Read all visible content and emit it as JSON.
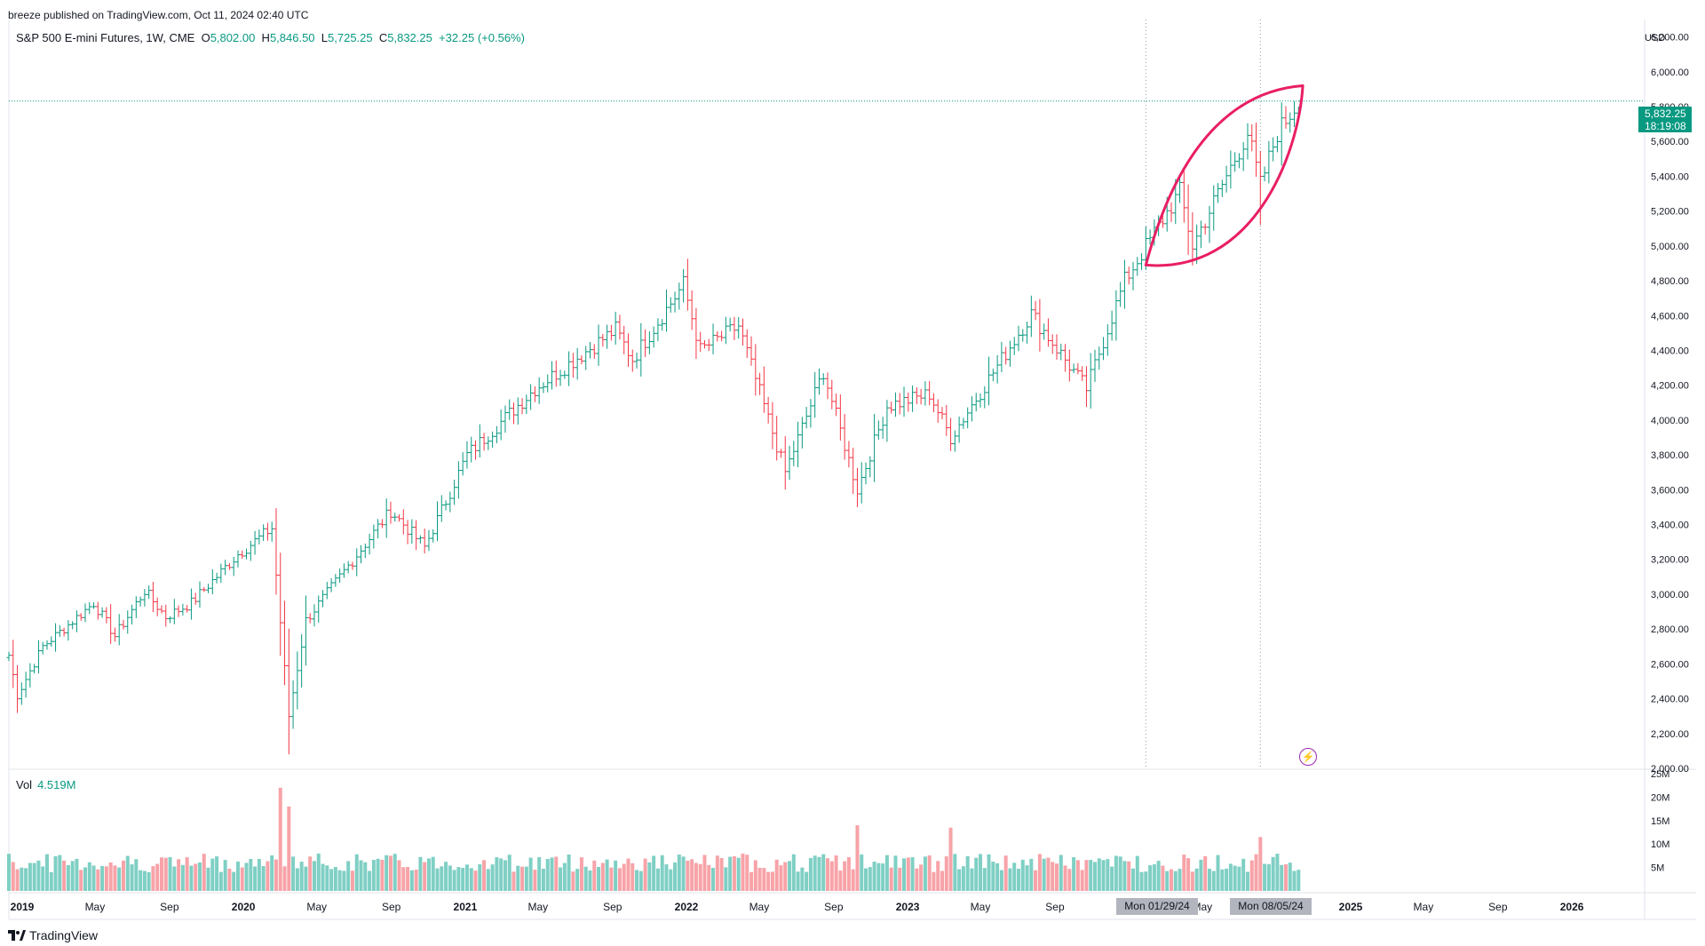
{
  "header": {
    "published": "breeze published on TradingView.com, Oct 11, 2024 02:40 UTC"
  },
  "legend": {
    "symbol": "S&P 500 E-mini Futures, 1W, CME",
    "o_key": "O",
    "open": "5,802.00",
    "h_key": "H",
    "high": "5,846.50",
    "l_key": "L",
    "low": "5,725.25",
    "c_key": "C",
    "close": "5,832.25",
    "change": "+32.25 (+0.56%)"
  },
  "volume_legend": {
    "label": "Vol",
    "value": "4.519M"
  },
  "axis": {
    "currency": "USD"
  },
  "last_price": {
    "price": "5,832.25",
    "countdown": "18:19:08"
  },
  "crosshair": {
    "left_date": "Mon 01/29/24",
    "right_date": "Mon 08/05/24"
  },
  "footer": {
    "brand": "TradingView"
  },
  "icons": {
    "flash": "lightning-bolt-icon"
  },
  "colors": {
    "up": "#089981",
    "down": "#f23645",
    "up_volume": "#7fcfc4",
    "down_volume": "#f7a3a8",
    "drawing": "#e91e63",
    "price_line": "#089981",
    "crosshair_label_bg": "#b2b5be"
  },
  "chart_data": {
    "type": "ohlc-bar",
    "title": "S&P 500 E-mini Futures, 1W, CME",
    "ylim": [
      2000,
      6300
    ],
    "y_ticks": [
      2000,
      2200,
      2400,
      2600,
      2800,
      3000,
      3200,
      3400,
      3600,
      3800,
      4000,
      4200,
      4400,
      4600,
      4800,
      5000,
      5200,
      5400,
      5600,
      5800,
      6000,
      6200
    ],
    "y_tick_labels": [
      "2,000.00",
      "2,200.00",
      "2,400.00",
      "2,600.00",
      "2,800.00",
      "3,000.00",
      "3,200.00",
      "3,400.00",
      "3,600.00",
      "3,800.00",
      "4,000.00",
      "4,200.00",
      "4,400.00",
      "4,600.00",
      "4,800.00",
      "5,000.00",
      "5,200.00",
      "5,400.00",
      "5,600.00",
      "5,800.00",
      "6,000.00",
      "6,200.00"
    ],
    "x_ticks": [
      "2019",
      "May",
      "Sep",
      "2020",
      "May",
      "Sep",
      "2021",
      "May",
      "Sep",
      "2022",
      "May",
      "Sep",
      "2023",
      "May",
      "Sep",
      "Jan",
      "May",
      "Aug",
      "2025",
      "May",
      "Sep",
      "2026"
    ],
    "x_tick_dates": [
      "2019-01-01",
      "2019-05-01",
      "2019-09-01",
      "2020-01-01",
      "2020-05-01",
      "2020-09-01",
      "2021-01-01",
      "2021-05-01",
      "2021-09-01",
      "2022-01-01",
      "2022-05-01",
      "2022-09-01",
      "2023-01-01",
      "2023-05-01",
      "2023-09-01",
      "2024-01-29",
      "2024-05-01",
      "2024-08-05",
      "2025-01-01",
      "2025-05-01",
      "2025-09-01",
      "2026-01-01"
    ],
    "x_tick_hidden": [
      false,
      false,
      false,
      false,
      false,
      false,
      false,
      false,
      false,
      false,
      false,
      false,
      false,
      false,
      false,
      true,
      false,
      true,
      false,
      false,
      false,
      false
    ],
    "x_domain": [
      "2018-12-10",
      "2026-05-01"
    ],
    "weekly_close_anchors": [
      {
        "date": "2018-12-10",
        "close": 2650
      },
      {
        "date": "2018-12-24",
        "close": 2420
      },
      {
        "date": "2019-02-04",
        "close": 2700
      },
      {
        "date": "2019-04-29",
        "close": 2950
      },
      {
        "date": "2019-06-03",
        "close": 2760
      },
      {
        "date": "2019-07-22",
        "close": 3020
      },
      {
        "date": "2019-08-26",
        "close": 2870
      },
      {
        "date": "2019-10-07",
        "close": 2950
      },
      {
        "date": "2019-12-23",
        "close": 3230
      },
      {
        "date": "2020-02-17",
        "close": 3380
      },
      {
        "date": "2020-03-16",
        "close": 2300
      },
      {
        "date": "2020-04-13",
        "close": 2850
      },
      {
        "date": "2020-06-08",
        "close": 3100
      },
      {
        "date": "2020-08-31",
        "close": 3480
      },
      {
        "date": "2020-10-26",
        "close": 3270
      },
      {
        "date": "2021-01-04",
        "close": 3800
      },
      {
        "date": "2021-04-26",
        "close": 4180
      },
      {
        "date": "2021-09-06",
        "close": 4520
      },
      {
        "date": "2021-10-04",
        "close": 4350
      },
      {
        "date": "2021-12-27",
        "close": 4780
      },
      {
        "date": "2022-01-24",
        "close": 4400
      },
      {
        "date": "2022-03-28",
        "close": 4540
      },
      {
        "date": "2022-06-13",
        "close": 3700
      },
      {
        "date": "2022-08-15",
        "close": 4280
      },
      {
        "date": "2022-10-10",
        "close": 3600
      },
      {
        "date": "2022-11-28",
        "close": 4080
      },
      {
        "date": "2023-02-06",
        "close": 4150
      },
      {
        "date": "2023-03-13",
        "close": 3900
      },
      {
        "date": "2023-07-24",
        "close": 4610
      },
      {
        "date": "2023-10-23",
        "close": 4180
      },
      {
        "date": "2023-12-25",
        "close": 4800
      },
      {
        "date": "2024-03-25",
        "close": 5310
      },
      {
        "date": "2024-04-15",
        "close": 5000
      },
      {
        "date": "2024-07-15",
        "close": 5650
      },
      {
        "date": "2024-08-05",
        "close": 5350
      },
      {
        "date": "2024-09-02",
        "close": 5650
      },
      {
        "date": "2024-10-07",
        "close": 5832
      }
    ],
    "spikes": [
      {
        "date": "2020-03-16",
        "low": 2175
      },
      {
        "date": "2022-10-10",
        "low": 3500
      },
      {
        "date": "2024-08-05",
        "low": 5120
      },
      {
        "date": "2018-12-24",
        "low": 2320
      }
    ],
    "last_close": 5832.25,
    "volume": {
      "ylim": [
        0,
        25
      ],
      "y_ticks": [
        5,
        10,
        15,
        20,
        25
      ],
      "y_tick_labels": [
        "5M",
        "10M",
        "15M",
        "20M",
        "25M"
      ],
      "unit": "M",
      "last": 4.519,
      "peaks": [
        {
          "date": "2020-03-02",
          "value": 22
        },
        {
          "date": "2020-03-16",
          "value": 18
        },
        {
          "date": "2022-10-10",
          "value": 14
        },
        {
          "date": "2023-03-13",
          "value": 13.5
        },
        {
          "date": "2024-08-05",
          "value": 11.5
        }
      ]
    },
    "drawing": {
      "type": "leaf-shape",
      "from": {
        "date": "2024-01-29",
        "price": 4890
      },
      "to": {
        "date": "2024-10-14",
        "price": 5920
      }
    },
    "vertical_markers": [
      "2024-01-29",
      "2024-08-05"
    ]
  }
}
